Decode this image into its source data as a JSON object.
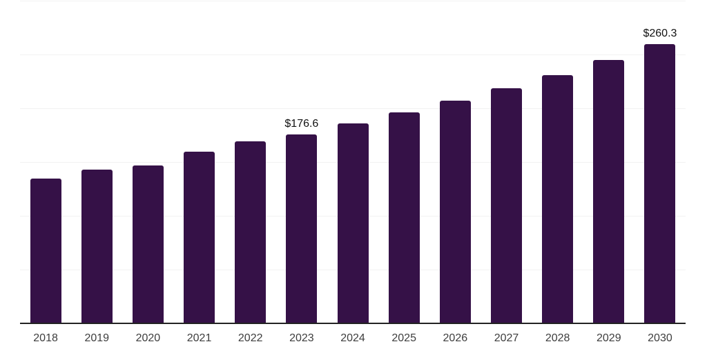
{
  "colors": {
    "bar": "#351147",
    "gridline": "#f2f2f2",
    "axis_line": "#222222",
    "tick_label": "#3d3d3d",
    "annotation": "#111111",
    "background": "#ffffff"
  },
  "chart_data": {
    "type": "bar",
    "title": "",
    "xlabel": "",
    "ylabel": "",
    "categories": [
      "2018",
      "2019",
      "2020",
      "2021",
      "2022",
      "2023",
      "2024",
      "2025",
      "2026",
      "2027",
      "2028",
      "2029",
      "2030"
    ],
    "values": [
      135.5,
      143.7,
      147.3,
      160.4,
      169.6,
      176.6,
      186.7,
      197.1,
      207.5,
      219.0,
      231.2,
      245.5,
      260.3
    ],
    "value_prefix": "$",
    "ylim": [
      0,
      300
    ],
    "gridline_step": 50,
    "grid": "horizontal",
    "legend": "none",
    "annotations": [
      {
        "index": 5,
        "text": "$176.6"
      },
      {
        "index": 12,
        "text": "$260.3"
      }
    ]
  }
}
